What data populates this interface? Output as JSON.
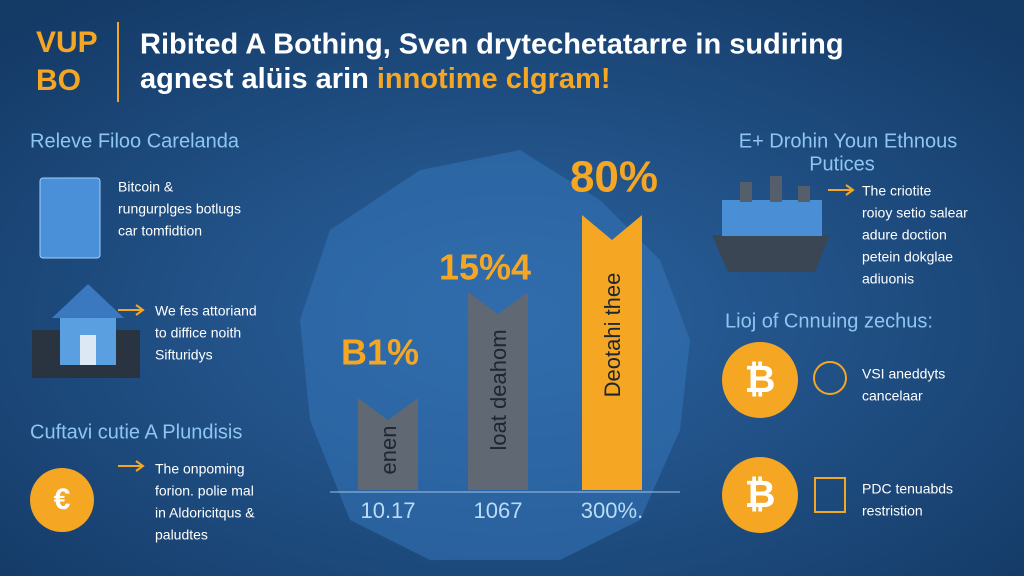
{
  "header": {
    "logo": [
      "VUP",
      "BO"
    ],
    "title_line1": "Ribited A Bothing, Sven drytechetatarre in sudiring",
    "title_line2_a": "agnest alüis arin",
    "title_line2_b": "innotime clgram!"
  },
  "left": {
    "section1": {
      "heading": "Releve Filoo Carelanda",
      "lines": [
        "Bitcoin &",
        "rungurplges botlugs",
        "car tomfidtion"
      ]
    },
    "section2": {
      "lines": [
        "We fes attoriand",
        "to diffice noith",
        "Sifturidys"
      ]
    },
    "section3": {
      "heading": "Cuftavi cutie A Plundisis",
      "icon": "€",
      "lines": [
        "The onpoming",
        "forion. polie mal",
        "in Aldoricitqus &",
        "paludtes"
      ]
    }
  },
  "center": {
    "bars": [
      {
        "top_label": "B1%",
        "text": "enen",
        "bottom_label": "10.17"
      },
      {
        "top_label": "15%4",
        "text": "loat deahom",
        "bottom_label": "1067"
      },
      {
        "top_label": "80%",
        "text": "Deotahi thee",
        "bottom_label": "300%."
      }
    ]
  },
  "right": {
    "section1": {
      "heading": [
        "E+ Drohin Youn Ethnous",
        "Putices"
      ],
      "lines": [
        "The criotite",
        "roioy setio salear",
        "adure doction",
        "petein dokglae",
        "adiuonis"
      ]
    },
    "section2": {
      "heading": "Lioj of Cnnuing zechus:",
      "icon": "₿",
      "items": [
        {
          "lines": [
            "VSI aneddyts",
            "cancelaar"
          ]
        },
        {
          "lines": [
            "PDC tenuabds",
            "restristion"
          ]
        }
      ]
    }
  }
}
